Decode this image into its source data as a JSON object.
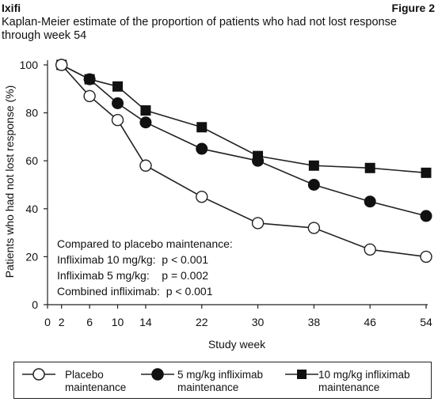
{
  "header": {
    "brand": "Ixifi",
    "figure_label": "Figure 2"
  },
  "chart_data": {
    "type": "line",
    "title": "Kaplan-Meier estimate of the proportion of patients who had not lost response through week 54",
    "xlabel": "Study week",
    "ylabel": "Patients who had not lost response (%)",
    "xlim": [
      0,
      54
    ],
    "ylim": [
      0,
      100
    ],
    "x_ticks": [
      0,
      2,
      6,
      10,
      14,
      22,
      30,
      38,
      46,
      54
    ],
    "y_ticks": [
      0,
      20,
      40,
      60,
      80,
      100
    ],
    "grid": false,
    "legend_position": "bottom",
    "series": [
      {
        "name": "Placebo maintenance",
        "marker": "open-circle",
        "x": [
          2,
          6,
          10,
          14,
          22,
          30,
          38,
          46,
          54
        ],
        "y": [
          100,
          87,
          77,
          58,
          45,
          34,
          32,
          23,
          20
        ]
      },
      {
        "name": "5 mg/kg infliximab maintenance",
        "marker": "filled-circle",
        "x": [
          2,
          6,
          10,
          14,
          22,
          30,
          38,
          46,
          54
        ],
        "y": [
          100,
          94,
          84,
          76,
          65,
          60,
          50,
          43,
          37
        ]
      },
      {
        "name": "10 mg/kg infliximab maintenance",
        "marker": "filled-square",
        "x": [
          2,
          6,
          10,
          14,
          22,
          30,
          38,
          46,
          54
        ],
        "y": [
          100,
          94,
          91,
          81,
          74,
          62,
          58,
          57,
          55
        ]
      }
    ],
    "annotations": [
      "Compared to placebo maintenance:",
      "Infliximab 10 mg/kg:  p < 0.001",
      "Infliximab 5 mg/kg:    p = 0.002",
      "Combined infliximab:  p < 0.001"
    ]
  },
  "legend": {
    "items": [
      {
        "label": "Placebo\nmaintenance",
        "marker": "open-circle"
      },
      {
        "label": "5 mg/kg infliximab\nmaintenance",
        "marker": "filled-circle"
      },
      {
        "label": "10 mg/kg infliximab\nmaintenance",
        "marker": "filled-square"
      }
    ]
  },
  "colors": {
    "line": "#222222",
    "marker_fill": "#111111",
    "open_fill": "#ffffff"
  }
}
